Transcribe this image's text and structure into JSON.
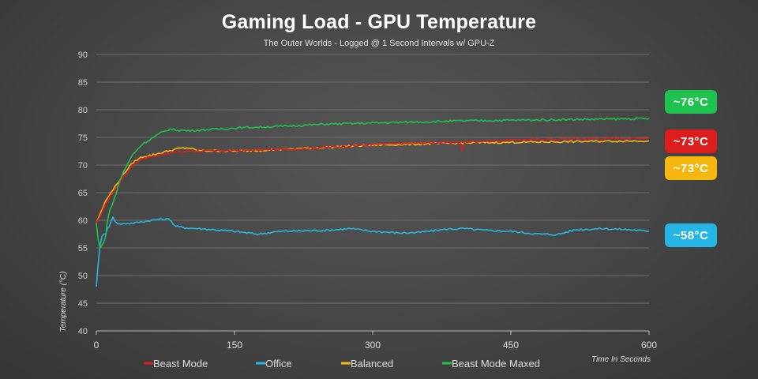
{
  "chart_data": {
    "type": "line",
    "title": "Gaming Load - GPU Temperature",
    "subtitle": "The Outer Worlds - Logged @ 1 Second Intervals w/ GPU-Z",
    "xlabel": "Time In Seconds",
    "ylabel": "Temperature (°C)",
    "xlim": [
      0,
      600
    ],
    "ylim": [
      40,
      90
    ],
    "xticks": [
      0,
      150,
      300,
      450,
      600
    ],
    "yticks": [
      40,
      45,
      50,
      55,
      60,
      65,
      70,
      75,
      80,
      85,
      90
    ],
    "grid": true,
    "legend_position": "bottom",
    "series": [
      {
        "name": "Beast Mode",
        "color": "#dd1e1e",
        "x": [
          0,
          5,
          10,
          20,
          30,
          40,
          50,
          60,
          80,
          100,
          150,
          200,
          250,
          300,
          350,
          395,
          397,
          400,
          450,
          500,
          550,
          600
        ],
        "y": [
          59.5,
          61,
          63,
          65.5,
          68,
          70,
          71.2,
          71.5,
          72.2,
          72.5,
          72.6,
          72.8,
          73.2,
          73.7,
          74,
          74.1,
          72.5,
          74.2,
          74.5,
          74.7,
          74.8,
          74.9
        ]
      },
      {
        "name": "Office",
        "color": "#25b6e6",
        "x": [
          0,
          2,
          4,
          6,
          8,
          10,
          12,
          14,
          18,
          22,
          25,
          30,
          40,
          60,
          70,
          80,
          85,
          90,
          100,
          120,
          150,
          175,
          200,
          250,
          275,
          300,
          330,
          350,
          380,
          400,
          420,
          450,
          480,
          500,
          520,
          550,
          580,
          600
        ],
        "y": [
          48,
          52,
          55.5,
          57,
          57.5,
          57.5,
          58.5,
          59,
          60.5,
          59.6,
          59.3,
          59.4,
          59.5,
          60,
          60.2,
          60.2,
          59,
          58.8,
          58.6,
          58.4,
          58,
          57.5,
          58,
          58.2,
          58.5,
          58,
          57.7,
          57.8,
          58.4,
          58.5,
          58.2,
          58,
          57.5,
          57.4,
          58.3,
          58.5,
          58.3,
          58
        ]
      },
      {
        "name": "Balanced",
        "color": "#f5b710",
        "x": [
          0,
          5,
          10,
          20,
          30,
          40,
          50,
          60,
          70,
          80,
          90,
          100,
          110,
          150,
          200,
          250,
          300,
          350,
          400,
          450,
          500,
          550,
          600
        ],
        "y": [
          59.5,
          61.5,
          63.5,
          66,
          68.5,
          70.5,
          71.5,
          71.8,
          72.2,
          72.6,
          73,
          73.1,
          72.6,
          72.5,
          72.8,
          73.2,
          73.6,
          73.8,
          74,
          74.1,
          74.2,
          74.3,
          74.4
        ]
      },
      {
        "name": "Beast Mode Maxed",
        "color": "#1fc24e",
        "x": [
          0,
          2,
          4,
          6,
          8,
          10,
          12,
          15,
          20,
          25,
          30,
          40,
          50,
          60,
          70,
          80,
          90,
          100,
          150,
          200,
          250,
          300,
          350,
          400,
          450,
          500,
          550,
          600
        ],
        "y": [
          59.5,
          56.5,
          55,
          55.5,
          56,
          57,
          60,
          62,
          64,
          67,
          69,
          72,
          73.8,
          74.8,
          75.8,
          76.5,
          76.3,
          76.2,
          76.7,
          77,
          77.4,
          77.6,
          77.8,
          78,
          78.1,
          78.2,
          78.3,
          78.4
        ]
      }
    ],
    "callouts": [
      {
        "label": "~76°C",
        "color": "#1fc24e"
      },
      {
        "label": "~73°C",
        "color": "#dd1e1e"
      },
      {
        "label": "~73°C",
        "color": "#f5b710"
      },
      {
        "label": "~58°C",
        "color": "#25b6e6"
      }
    ]
  }
}
